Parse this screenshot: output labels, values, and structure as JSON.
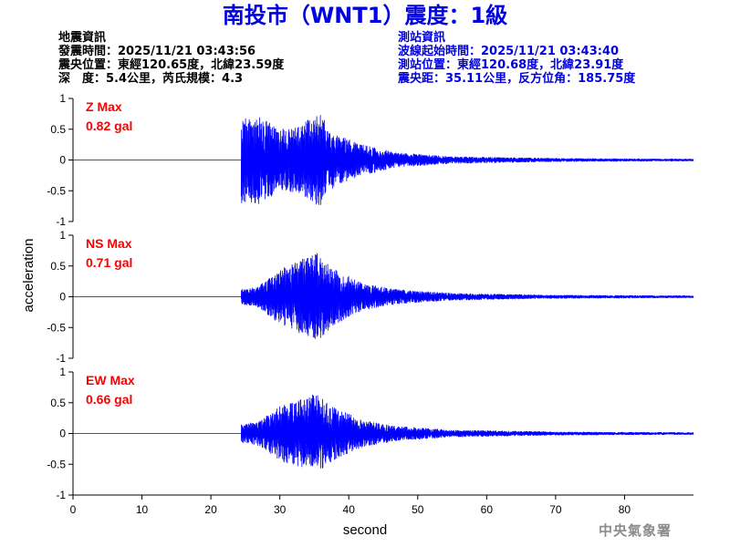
{
  "title": "南投市（WNT1）震度：1級",
  "event_info": {
    "heading": "地震資訊",
    "origin_time": "發震時間：2025/11/21 03:43:56",
    "epicenter": "震央位置：東經120.65度，北緯23.59度",
    "depth_magnitude": "深　度：5.4公里，芮氏規模：4.3"
  },
  "station_info": {
    "heading": "測站資訊",
    "wave_start": "波線起始時間：2025/11/21 03:43:40",
    "location": "測站位置：東經120.68度，北緯23.91度",
    "distance": "震央距：35.11公里，反方位角：185.75度"
  },
  "footer": {
    "brand": "中央氣象署"
  },
  "colors": {
    "title": "#0000e0",
    "trace": "#0000ff",
    "max_label": "#ff0000",
    "info_right": "#0000e0",
    "footer": "#8c8c8c"
  },
  "chart_data": {
    "type": "line",
    "xlabel": "second",
    "ylabel": "acceleration",
    "xlim": [
      0,
      90
    ],
    "x_ticks": [
      "0",
      "10",
      "20",
      "30",
      "40",
      "50",
      "60",
      "70",
      "80"
    ],
    "y_ticks": [
      "1",
      "0.5",
      "0",
      "-0.5",
      "-1"
    ],
    "grid": false,
    "panels": [
      {
        "name": "Z",
        "max_label": "Z Max",
        "max_value": "0.82 gal",
        "ylim": [
          -1,
          1
        ],
        "onset_s": 24.4,
        "peak_s": 35.5,
        "envelope": [
          [
            24.4,
            0.7
          ],
          [
            27.0,
            0.72
          ],
          [
            30.0,
            0.5
          ],
          [
            33.0,
            0.55
          ],
          [
            35.5,
            0.82
          ],
          [
            38.0,
            0.42
          ],
          [
            42.0,
            0.25
          ],
          [
            47.0,
            0.12
          ],
          [
            55.0,
            0.06
          ],
          [
            70.0,
            0.03
          ],
          [
            90.0,
            0.02
          ]
        ]
      },
      {
        "name": "NS",
        "max_label": "NS Max",
        "max_value": "0.71 gal",
        "ylim": [
          -1,
          1
        ],
        "onset_s": 24.4,
        "peak_s": 35.5,
        "envelope": [
          [
            24.4,
            0.12
          ],
          [
            27.0,
            0.18
          ],
          [
            30.0,
            0.45
          ],
          [
            33.0,
            0.6
          ],
          [
            35.5,
            0.71
          ],
          [
            38.0,
            0.45
          ],
          [
            42.0,
            0.22
          ],
          [
            47.0,
            0.12
          ],
          [
            55.0,
            0.06
          ],
          [
            70.0,
            0.03
          ],
          [
            90.0,
            0.02
          ]
        ]
      },
      {
        "name": "EW",
        "max_label": "EW Max",
        "max_value": "0.66 gal",
        "ylim": [
          -1,
          1
        ],
        "onset_s": 24.4,
        "peak_s": 35.0,
        "envelope": [
          [
            24.4,
            0.15
          ],
          [
            27.0,
            0.2
          ],
          [
            30.0,
            0.45
          ],
          [
            33.0,
            0.55
          ],
          [
            35.0,
            0.66
          ],
          [
            38.0,
            0.42
          ],
          [
            42.0,
            0.22
          ],
          [
            47.0,
            0.12
          ],
          [
            55.0,
            0.06
          ],
          [
            70.0,
            0.03
          ],
          [
            90.0,
            0.02
          ]
        ]
      }
    ]
  }
}
